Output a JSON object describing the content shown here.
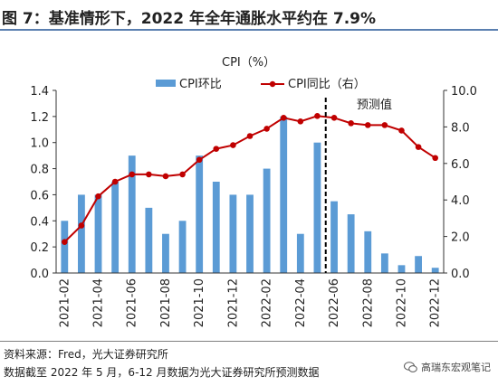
{
  "title": "图 7：基准情形下，2022 年全年通胀水平约在 7.9%",
  "chart_data": {
    "type": "bar+line",
    "unit_label": "CPI（%）",
    "categories": [
      "2021-02",
      "2021-03",
      "2021-04",
      "2021-05",
      "2021-06",
      "2021-07",
      "2021-08",
      "2021-09",
      "2021-10",
      "2021-11",
      "2021-12",
      "2022-01",
      "2022-02",
      "2022-03",
      "2022-04",
      "2022-05",
      "2022-06",
      "2022-07",
      "2022-08",
      "2022-09",
      "2022-10",
      "2022-11",
      "2022-12"
    ],
    "x_tick_labels": [
      "2021-02",
      "2021-04",
      "2021-06",
      "2021-08",
      "2021-10",
      "2021-12",
      "2022-02",
      "2022-04",
      "2022-06",
      "2022-08",
      "2022-10",
      "2022-12"
    ],
    "series": [
      {
        "name": "CPI环比",
        "type": "bar",
        "axis": "left",
        "color": "#5b9bd5",
        "values": [
          0.4,
          0.6,
          0.6,
          0.7,
          0.9,
          0.5,
          0.3,
          0.4,
          0.9,
          0.7,
          0.6,
          0.6,
          0.8,
          1.2,
          0.3,
          1.0,
          0.55,
          0.45,
          0.32,
          0.15,
          0.06,
          0.13,
          0.04
        ]
      },
      {
        "name": "CPI同比（右）",
        "type": "line",
        "axis": "right",
        "color": "#c00000",
        "values": [
          1.7,
          2.6,
          4.2,
          5.0,
          5.4,
          5.4,
          5.3,
          5.4,
          6.2,
          6.8,
          7.0,
          7.5,
          7.9,
          8.5,
          8.3,
          8.6,
          8.5,
          8.2,
          8.1,
          8.1,
          7.8,
          6.9,
          6.3
        ]
      }
    ],
    "y_left": {
      "min": 0,
      "max": 1.4,
      "ticks": [
        "0.0",
        "0.2",
        "0.4",
        "0.6",
        "0.8",
        "1.0",
        "1.2",
        "1.4"
      ]
    },
    "y_right": {
      "min": 0,
      "max": 10,
      "ticks": [
        "0.0",
        "2.0",
        "4.0",
        "6.0",
        "8.0",
        "10.0"
      ]
    },
    "forecast_start": "2022-05",
    "forecast_label": "预测值",
    "legend_position": "top"
  },
  "footer": {
    "source": "资料来源：Fred，光大证券研究所",
    "note": "数据截至 2022 年 5 月，6-12 月数据为光大证券研究所预测数据"
  },
  "watermark": {
    "text": "高瑞东宏观笔记",
    "icon": "wechat-icon"
  }
}
